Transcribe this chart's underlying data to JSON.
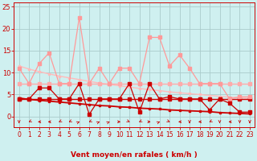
{
  "x": [
    0,
    1,
    2,
    3,
    4,
    5,
    6,
    7,
    8,
    9,
    10,
    11,
    12,
    13,
    14,
    15,
    16,
    17,
    18,
    19,
    20,
    21,
    22,
    23
  ],
  "rafales": [
    11.0,
    7.5,
    12.0,
    14.5,
    7.5,
    7.5,
    22.5,
    7.5,
    11.0,
    7.5,
    11.0,
    11.0,
    7.5,
    18.0,
    18.0,
    11.5,
    14.0,
    11.0,
    7.5,
    7.5,
    7.5,
    4.0,
    4.5,
    4.5
  ],
  "moyen": [
    4.0,
    4.0,
    6.5,
    6.5,
    4.0,
    4.0,
    7.5,
    0.5,
    4.0,
    4.0,
    4.0,
    7.5,
    1.0,
    7.5,
    4.0,
    4.5,
    4.0,
    4.0,
    4.0,
    1.5,
    4.0,
    3.0,
    1.0,
    1.0
  ],
  "rafales_flat": [
    7.5,
    7.5,
    7.5,
    7.5,
    7.5,
    7.5,
    7.5,
    7.5,
    7.5,
    7.5,
    7.5,
    7.5,
    7.5,
    7.5,
    7.5,
    7.5,
    7.5,
    7.5,
    7.5,
    7.5,
    7.5,
    7.5,
    7.5,
    7.5
  ],
  "moyen_flat": [
    4.0,
    4.0,
    4.0,
    4.0,
    4.0,
    4.0,
    4.0,
    4.0,
    4.0,
    4.0,
    4.0,
    4.0,
    4.0,
    4.0,
    4.0,
    4.0,
    4.0,
    4.0,
    4.0,
    4.0,
    4.0,
    4.0,
    4.0,
    4.0
  ],
  "trend_rafales": [
    11.5,
    10.8,
    10.2,
    9.7,
    9.2,
    8.8,
    8.4,
    8.0,
    7.6,
    7.3,
    7.0,
    6.7,
    6.4,
    6.1,
    5.9,
    5.6,
    5.4,
    5.2,
    5.0,
    4.8,
    4.6,
    4.4,
    4.3,
    4.1
  ],
  "trend_moyen": [
    4.2,
    3.9,
    3.7,
    3.5,
    3.3,
    3.1,
    2.9,
    2.7,
    2.5,
    2.4,
    2.2,
    2.1,
    1.9,
    1.8,
    1.7,
    1.5,
    1.4,
    1.3,
    1.2,
    1.1,
    0.9,
    0.8,
    0.7,
    0.6
  ],
  "color_rafales": "#ff9999",
  "color_moyen": "#cc0000",
  "color_rafales_flat": "#ffaaaa",
  "color_moyen_flat": "#cc0000",
  "color_trend_rafales": "#ffbbbb",
  "color_trend_moyen": "#cc0000",
  "color_bg": "#cff0f0",
  "color_grid": "#aacccc",
  "color_axis_text": "#cc0000",
  "xlabel": "Vent moyen/en rafales ( km/h )",
  "ylim": [
    0,
    25
  ],
  "xlim": [
    0,
    23
  ],
  "yticks": [
    0,
    5,
    10,
    15,
    20,
    25
  ],
  "xticks": [
    0,
    1,
    2,
    3,
    4,
    5,
    6,
    7,
    8,
    9,
    10,
    11,
    12,
    13,
    14,
    15,
    16,
    17,
    18,
    19,
    20,
    21,
    22,
    23
  ],
  "wind_dirs": [
    180,
    225,
    270,
    270,
    225,
    225,
    45,
    225,
    45,
    45,
    90,
    135,
    225,
    90,
    45,
    135,
    270,
    180,
    270,
    225,
    180,
    270,
    180,
    180
  ],
  "marker_size": 2.5,
  "lw_data": 0.9,
  "lw_trend": 1.0,
  "lw_flat": 1.0
}
